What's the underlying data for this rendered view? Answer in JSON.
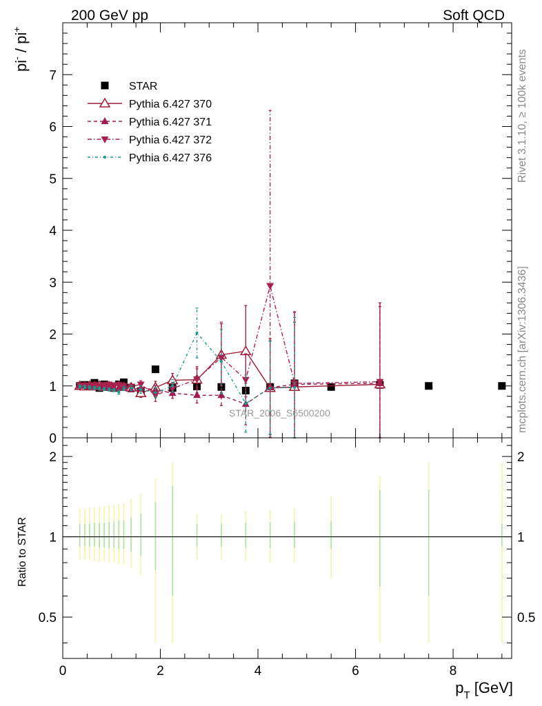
{
  "header": {
    "left": "200 GeV pp",
    "right": "Soft QCD"
  },
  "side_labels": {
    "rivet": "Rivet 3.1.10, ≥ 100k events",
    "mcplots": "mcplots.cern.ch [arXiv:1306.3436]"
  },
  "watermark": "STAR_2006_S6500200",
  "chart_data": [
    {
      "type": "scatter",
      "panel": "main",
      "ylabel_parts": [
        "pi",
        "-",
        " / pi",
        "+"
      ],
      "xlim": [
        0,
        9.2
      ],
      "ylim": [
        0,
        8
      ],
      "yticks": [
        0,
        1,
        2,
        3,
        4,
        5,
        6,
        7
      ],
      "legend_position": "top-left",
      "series": [
        {
          "name": "STAR",
          "color": "#000000",
          "marker": "square",
          "x": [
            0.35,
            0.45,
            0.55,
            0.65,
            0.75,
            0.85,
            0.95,
            1.05,
            1.15,
            1.25,
            1.4,
            1.6,
            1.9,
            2.25,
            2.75,
            3.25,
            3.75,
            4.25,
            4.75,
            5.5,
            6.5,
            7.5,
            9.0
          ],
          "y": [
            1.0,
            1.02,
            1.0,
            1.06,
            0.96,
            1.03,
            0.99,
            0.96,
            1.03,
            1.07,
            0.97,
            0.9,
            1.32,
            0.96,
            0.99,
            0.98,
            0.91,
            0.98,
            1.05,
            0.98,
            1.02,
            1.0,
            1.0
          ]
        },
        {
          "name": "Pythia 6.427 370",
          "color": "#9e1a32",
          "marker": "triangle-up-open",
          "line": "solid",
          "x": [
            0.35,
            0.45,
            0.55,
            0.65,
            0.75,
            0.85,
            0.95,
            1.05,
            1.15,
            1.25,
            1.4,
            1.6,
            1.9,
            2.25,
            2.75,
            3.25,
            3.75,
            4.25,
            4.75,
            6.5
          ],
          "y": [
            1.0,
            0.99,
            1.0,
            0.99,
            1.0,
            0.98,
            0.99,
            0.97,
            1.0,
            0.98,
            0.97,
            0.86,
            0.97,
            1.11,
            1.12,
            1.6,
            1.67,
            0.96,
            0.98,
            1.03
          ],
          "yerr": [
            0.03,
            0.03,
            0.03,
            0.03,
            0.03,
            0.03,
            0.03,
            0.03,
            0.03,
            0.03,
            0.05,
            0.08,
            0.12,
            0.13,
            0.25,
            0.6,
            0.88,
            0.95,
            1.45,
            1.5
          ]
        },
        {
          "name": "Pythia 6.427 371",
          "color": "#9e1a52",
          "marker": "triangle-up",
          "line": "dashed",
          "x": [
            0.35,
            0.45,
            0.55,
            0.65,
            0.75,
            0.85,
            0.95,
            1.05,
            1.15,
            1.25,
            1.4,
            1.6,
            1.9,
            2.25,
            2.75,
            3.25,
            3.75,
            4.25,
            4.75,
            6.5
          ],
          "y": [
            1.0,
            1.0,
            0.99,
            0.99,
            0.98,
            0.99,
            0.98,
            0.96,
            0.97,
            0.98,
            0.93,
            0.96,
            0.93,
            0.86,
            0.82,
            0.82,
            0.65,
            0.97,
            1.03,
            1.05
          ],
          "yerr": [
            0.03,
            0.03,
            0.03,
            0.03,
            0.03,
            0.03,
            0.03,
            0.03,
            0.03,
            0.03,
            0.04,
            0.06,
            0.08,
            0.1,
            0.15,
            0.2,
            0.4,
            0.9,
            1.2,
            1.55
          ]
        },
        {
          "name": "Pythia 6.427 372",
          "color": "#a8204e",
          "marker": "triangle-down",
          "line": "dash-dot",
          "x": [
            0.35,
            0.45,
            0.55,
            0.65,
            0.75,
            0.85,
            0.95,
            1.05,
            1.15,
            1.25,
            1.4,
            1.6,
            1.9,
            2.25,
            2.75,
            3.25,
            3.75,
            4.25,
            4.75,
            6.5
          ],
          "y": [
            1.01,
            1.0,
            1.01,
            1.02,
            1.0,
            1.02,
            1.03,
            1.01,
            1.02,
            1.0,
            0.99,
            1.03,
            0.82,
            0.95,
            1.13,
            1.55,
            1.12,
            2.93,
            1.05,
            1.08
          ],
          "yerr": [
            0.03,
            0.03,
            0.03,
            0.03,
            0.03,
            0.03,
            0.03,
            0.03,
            0.03,
            0.03,
            0.05,
            0.07,
            0.12,
            0.12,
            0.2,
            0.68,
            0.5,
            3.38,
            1.37,
            1.52
          ]
        },
        {
          "name": "Pythia 6.427 376",
          "color": "#1a9a8a",
          "marker": "dot",
          "line": "dash-dot-fine",
          "x": [
            0.35,
            0.45,
            0.55,
            0.65,
            0.75,
            0.85,
            0.95,
            1.05,
            1.15,
            1.25,
            1.4,
            1.6,
            1.9,
            2.25,
            2.75,
            3.25,
            3.75,
            4.25,
            4.75
          ],
          "y": [
            0.99,
            0.98,
            0.97,
            0.96,
            0.95,
            0.94,
            0.93,
            0.92,
            0.88,
            0.95,
            0.96,
            0.93,
            0.87,
            1.0,
            2.02,
            1.47,
            0.66,
            0.96,
            0.97
          ],
          "yerr": [
            0.03,
            0.03,
            0.03,
            0.03,
            0.03,
            0.03,
            0.03,
            0.03,
            0.04,
            0.04,
            0.05,
            0.07,
            0.1,
            0.12,
            0.48,
            0.62,
            0.55,
            0.9,
            1.35
          ]
        }
      ]
    },
    {
      "type": "line",
      "panel": "ratio",
      "ylabel": "Ratio to STAR",
      "xlabel_parts": [
        "p",
        "T",
        " [GeV]"
      ],
      "xlim": [
        0,
        9.2
      ],
      "ylim": [
        0.35,
        2.35
      ],
      "yscale": "log",
      "xticks": [
        0,
        2,
        4,
        6,
        8
      ],
      "yticks": [
        0.5,
        1,
        2
      ],
      "reference_line": 1,
      "bands": {
        "x": [
          0.35,
          0.45,
          0.55,
          0.65,
          0.75,
          0.85,
          0.95,
          1.05,
          1.15,
          1.25,
          1.4,
          1.6,
          1.9,
          2.25,
          2.75,
          3.25,
          3.75,
          4.25,
          4.75,
          5.5,
          6.5,
          7.5,
          9.0
        ],
        "stat_lo": [
          0.92,
          0.92,
          0.92,
          0.92,
          0.91,
          0.91,
          0.91,
          0.91,
          0.9,
          0.9,
          0.88,
          0.85,
          0.75,
          0.6,
          0.92,
          0.92,
          0.91,
          0.91,
          0.91,
          0.9,
          0.65,
          0.6,
          0.92
        ],
        "stat_hi": [
          1.12,
          1.12,
          1.12,
          1.13,
          1.13,
          1.13,
          1.14,
          1.14,
          1.15,
          1.15,
          1.18,
          1.22,
          1.35,
          1.55,
          1.12,
          1.12,
          1.13,
          1.13,
          1.14,
          1.14,
          1.5,
          1.5,
          1.12
        ],
        "syst_lo": [
          0.82,
          0.82,
          0.82,
          0.81,
          0.81,
          0.81,
          0.8,
          0.8,
          0.79,
          0.79,
          0.76,
          0.72,
          0.4,
          0.4,
          0.82,
          0.82,
          0.81,
          0.8,
          0.8,
          0.7,
          0.4,
          0.4,
          0.4
        ],
        "syst_hi": [
          1.28,
          1.28,
          1.29,
          1.29,
          1.3,
          1.3,
          1.31,
          1.32,
          1.33,
          1.34,
          1.38,
          1.45,
          1.65,
          1.9,
          1.22,
          1.22,
          1.25,
          1.26,
          1.28,
          1.42,
          1.7,
          1.9,
          1.9
        ],
        "stat_color": "#a8e6a0",
        "syst_color": "#f5f5a8"
      }
    }
  ]
}
